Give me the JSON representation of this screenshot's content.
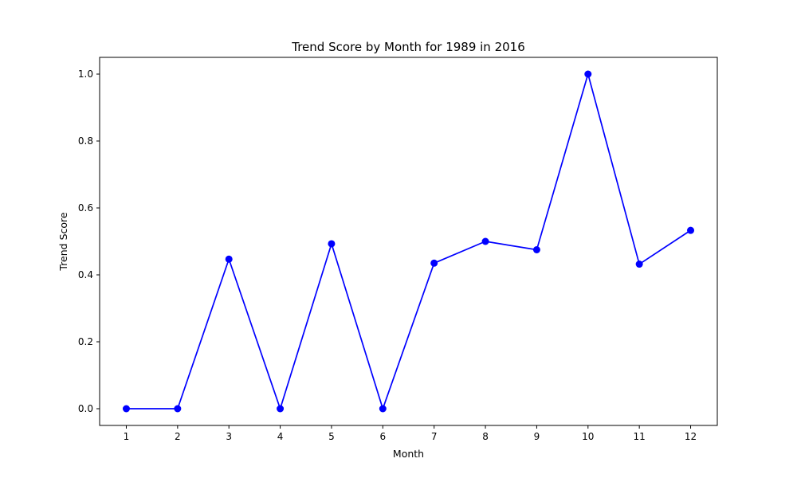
{
  "chart_data": {
    "type": "line",
    "title": "Trend Score by Month for 1989 in 2016",
    "xlabel": "Month",
    "ylabel": "Trend Score",
    "x": [
      1,
      2,
      3,
      4,
      5,
      6,
      7,
      8,
      9,
      10,
      11,
      12
    ],
    "x_tick_labels": [
      "1",
      "2",
      "3",
      "4",
      "5",
      "6",
      "7",
      "8",
      "9",
      "10",
      "11",
      "12"
    ],
    "y_tick_labels": [
      "0.0",
      "0.2",
      "0.4",
      "0.6",
      "0.8",
      "1.0"
    ],
    "y_ticks": [
      0.0,
      0.2,
      0.4,
      0.6,
      0.8,
      1.0
    ],
    "series": [
      {
        "values": [
          0.0,
          0.0,
          0.447,
          0.0,
          0.493,
          0.0,
          0.435,
          0.5,
          0.475,
          1.0,
          0.432,
          0.533
        ],
        "color": "#0000ff",
        "marker": "circle"
      }
    ],
    "xlim": [
      0.48,
      12.52
    ],
    "ylim": [
      -0.05,
      1.05
    ],
    "grid": false,
    "legend": "none"
  }
}
